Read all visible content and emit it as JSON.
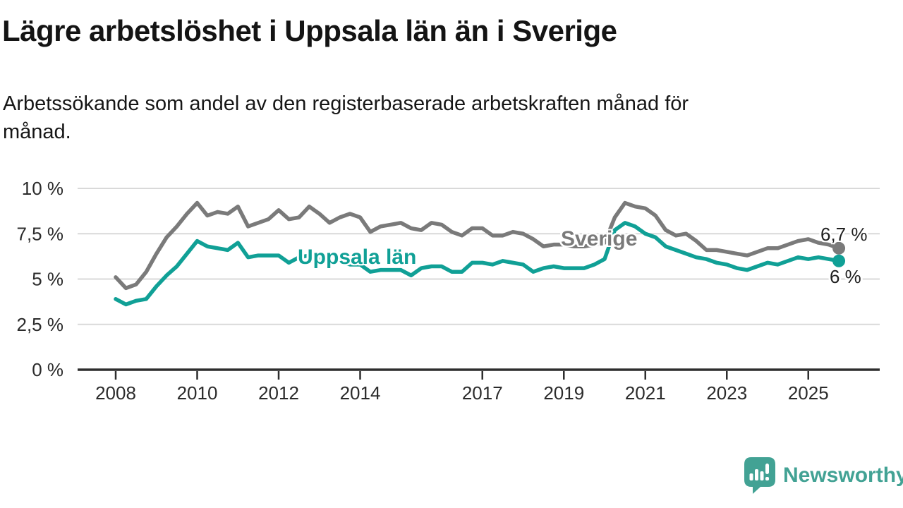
{
  "title": "Lägre arbetslöshet i Uppsala län än i Sverige",
  "subtitle": {
    "lines": [
      "Arbetssökande som andel av den registerbaserade arbetskraften månad för",
      "månad."
    ]
  },
  "branding": {
    "name": "Newsworthy",
    "logo_color": "#42a294"
  },
  "colors": {
    "sverige_line": "#7a7a7a",
    "uppsala_line": "#10a096",
    "gridline": "#d9d9d9",
    "axis": "#2e2e2e",
    "tick_text": "#2b2b2b"
  },
  "chart_data": {
    "type": "line",
    "title": "",
    "xlabel": "",
    "ylabel": "",
    "grid": true,
    "legend_position": "inline-labels",
    "x_axis": {
      "ticks": [
        2008,
        2010,
        2012,
        2014,
        2017,
        2019,
        2021,
        2023,
        2025
      ],
      "range": [
        2007.1,
        2026.8
      ]
    },
    "y_axis": {
      "tick_labels": [
        "0 %",
        "2,5 %",
        "5 %",
        "7,5 %",
        "10 %"
      ],
      "tick_values": [
        0,
        2.5,
        5,
        7.5,
        10
      ],
      "range": [
        0,
        10
      ],
      "unit": "%"
    },
    "x": [
      2008,
      2008.25,
      2008.5,
      2008.75,
      2009,
      2009.25,
      2009.5,
      2009.75,
      2010,
      2010.25,
      2010.5,
      2010.75,
      2011,
      2011.25,
      2011.5,
      2011.75,
      2012,
      2012.25,
      2012.5,
      2012.75,
      2013,
      2013.25,
      2013.5,
      2013.75,
      2014,
      2014.25,
      2014.5,
      2014.75,
      2015,
      2015.25,
      2015.5,
      2015.75,
      2016,
      2016.25,
      2016.5,
      2016.75,
      2017,
      2017.25,
      2017.5,
      2017.75,
      2018,
      2018.25,
      2018.5,
      2018.75,
      2019,
      2019.25,
      2019.5,
      2019.75,
      2020,
      2020.25,
      2020.5,
      2020.75,
      2021,
      2021.25,
      2021.5,
      2021.75,
      2022,
      2022.25,
      2022.5,
      2022.75,
      2023,
      2023.25,
      2023.5,
      2023.75,
      2024,
      2024.25,
      2024.5,
      2024.75,
      2025,
      2025.25,
      2025.5,
      2025.75
    ],
    "series": [
      {
        "name": "Sverige",
        "color": "#7a7a7a",
        "end_label": "6,7 %",
        "end_value": 6.7,
        "values": [
          5.1,
          4.5,
          4.7,
          5.4,
          6.4,
          7.3,
          7.9,
          8.6,
          9.2,
          8.5,
          8.7,
          8.6,
          9.0,
          7.9,
          8.1,
          8.3,
          8.8,
          8.3,
          8.4,
          9.0,
          8.6,
          8.1,
          8.4,
          8.6,
          8.4,
          7.6,
          7.9,
          8.0,
          8.1,
          7.8,
          7.7,
          8.1,
          8.0,
          7.6,
          7.4,
          7.8,
          7.8,
          7.4,
          7.4,
          7.6,
          7.5,
          7.2,
          6.8,
          6.9,
          6.9,
          6.8,
          6.8,
          6.9,
          7.0,
          8.4,
          9.2,
          9.0,
          8.9,
          8.5,
          7.7,
          7.4,
          7.5,
          7.1,
          6.6,
          6.6,
          6.5,
          6.4,
          6.3,
          6.5,
          6.7,
          6.7,
          6.9,
          7.1,
          7.2,
          7.0,
          6.9,
          6.7
        ]
      },
      {
        "name": "Uppsala län",
        "color": "#10a096",
        "end_label": "6 %",
        "end_value": 6.0,
        "values": [
          3.9,
          3.6,
          3.8,
          3.9,
          4.6,
          5.2,
          5.7,
          6.4,
          7.1,
          6.8,
          6.7,
          6.6,
          7.0,
          6.2,
          6.3,
          6.3,
          6.3,
          5.9,
          6.2,
          6.3,
          6.1,
          5.9,
          6.0,
          5.8,
          5.8,
          5.4,
          5.5,
          5.5,
          5.5,
          5.2,
          5.6,
          5.7,
          5.7,
          5.4,
          5.4,
          5.9,
          5.9,
          5.8,
          6.0,
          5.9,
          5.8,
          5.4,
          5.6,
          5.7,
          5.6,
          5.6,
          5.6,
          5.8,
          6.1,
          7.7,
          8.1,
          7.9,
          7.5,
          7.3,
          6.8,
          6.6,
          6.4,
          6.2,
          6.1,
          5.9,
          5.8,
          5.6,
          5.5,
          5.7,
          5.9,
          5.8,
          6.0,
          6.2,
          6.1,
          6.2,
          6.1,
          6.0
        ]
      }
    ]
  }
}
